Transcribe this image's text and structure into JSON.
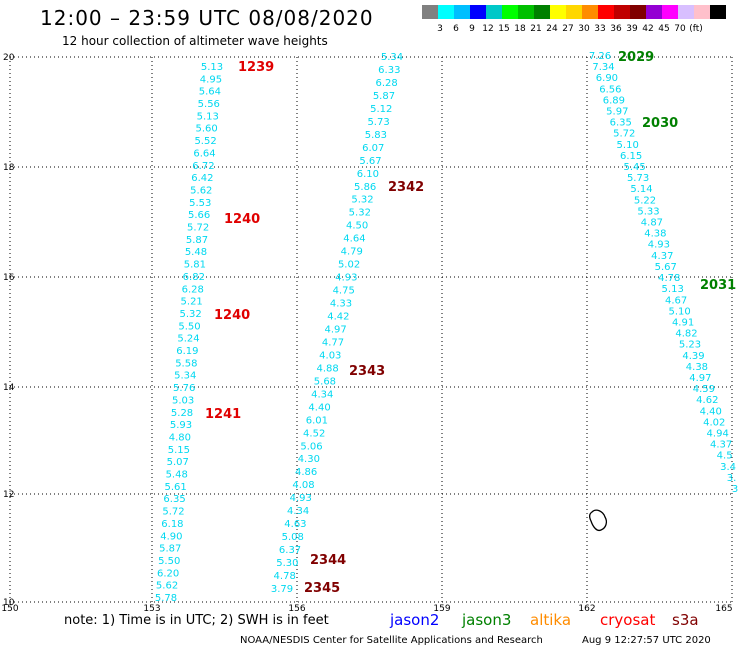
{
  "header": {
    "title": "12:00 – 23:59 UTC 08/08/2020",
    "subtitle": "12 hour collection of altimeter wave heights"
  },
  "legend": {
    "colors": [
      "#808080",
      "#00ffff",
      "#00bfff",
      "#0000ff",
      "#00c8c8",
      "#00ff00",
      "#00c000",
      "#008000",
      "#ffff00",
      "#ffd700",
      "#ff8c00",
      "#ff0000",
      "#c00000",
      "#800000",
      "#9400d3",
      "#ff00ff",
      "#d8bfff",
      "#ffc0cb",
      "#000000"
    ],
    "labels": [
      "3",
      "6",
      "9",
      "12",
      "15",
      "18",
      "21",
      "24",
      "27",
      "30",
      "33",
      "36",
      "39",
      "42",
      "45",
      "70",
      "(ft)"
    ]
  },
  "axes": {
    "x_ticks": [
      "150",
      "153",
      "156",
      "159",
      "162",
      "165"
    ],
    "y_ticks": [
      "10",
      "12",
      "14",
      "16",
      "18",
      "20"
    ]
  },
  "tracks": {
    "track_1": [
      "5.13",
      "4.95",
      "5.64",
      "5.56",
      "5.13",
      "5.60",
      "5.52",
      "6.64",
      "6.72",
      "6.42",
      "5.62",
      "5.53",
      "5.66",
      "5.72",
      "5.87",
      "5.48",
      "5.81",
      "6.82",
      "6.28",
      "5.21",
      "5.32",
      "5.50",
      "5.24",
      "6.19",
      "5.58",
      "5.34",
      "5.76",
      "5.03",
      "5.28",
      "5.93",
      "4.80",
      "5.15",
      "5.07",
      "5.48",
      "5.61",
      "6.35",
      "5.72",
      "6.18",
      "4.90",
      "5.87",
      "5.50",
      "6.20",
      "5.62",
      "5.78"
    ],
    "track_2": [
      "5.34",
      "6.33",
      "6.28",
      "5.87",
      "5.12",
      "5.73",
      "5.83",
      "6.07",
      "5.67",
      "6.10",
      "5.86",
      "5.32",
      "5.32",
      "4.50",
      "4.64",
      "4.79",
      "5.02",
      "4.93",
      "4.75",
      "4.33",
      "4.42",
      "4.97",
      "4.77",
      "4.03",
      "4.88",
      "5.68",
      "4.34",
      "4.40",
      "6.01",
      "4.52",
      "5.06",
      "4.30",
      "4.86",
      "4.08",
      "4.93",
      "4.34",
      "4.63",
      "5.08",
      "6.37",
      "5.30",
      "4.78",
      "3.79"
    ],
    "track_3": [
      "7.26",
      "7.34",
      "6.90",
      "6.56",
      "6.89",
      "5.97",
      "6.35",
      "5.72",
      "5.10",
      "6.15",
      "5.45",
      "5.73",
      "5.14",
      "5.22",
      "5.33",
      "4.87",
      "4.38",
      "4.93",
      "4.37",
      "5.67",
      "4.78",
      "5.13",
      "4.67",
      "5.10",
      "4.91",
      "4.82",
      "5.23",
      "4.39",
      "4.38",
      "4.97",
      "4.59",
      "4.62",
      "4.40",
      "4.02",
      "4.94",
      "4.37",
      "4.5",
      "3.4",
      "3.",
      "3"
    ]
  },
  "time_labels": [
    {
      "text": "1239",
      "color": "#e00000"
    },
    {
      "text": "1240",
      "color": "#e00000"
    },
    {
      "text": "1240",
      "color": "#e00000"
    },
    {
      "text": "1241",
      "color": "#e00000"
    },
    {
      "text": "2342",
      "color": "#800000"
    },
    {
      "text": "2343",
      "color": "#800000"
    },
    {
      "text": "2344",
      "color": "#800000"
    },
    {
      "text": "2345",
      "color": "#800000"
    },
    {
      "text": "2029",
      "color": "#008000"
    },
    {
      "text": "2030",
      "color": "#008000"
    },
    {
      "text": "2031",
      "color": "#008000"
    }
  ],
  "value_color": "#00d8f0",
  "footer": {
    "note": "note:  1) Time is in UTC;  2) SWH is in feet",
    "satellites": [
      {
        "name": "jason2",
        "color": "#0000ff"
      },
      {
        "name": "jason3",
        "color": "#008000"
      },
      {
        "name": "altika",
        "color": "#ff8c00"
      },
      {
        "name": "cryosat",
        "color": "#ff0000"
      },
      {
        "name": "s3a",
        "color": "#800000"
      }
    ],
    "credit": "NOAA/NESDIS Center for Satellite Applications and Research",
    "timestamp": "Aug  9 12:27:57 UTC 2020"
  }
}
